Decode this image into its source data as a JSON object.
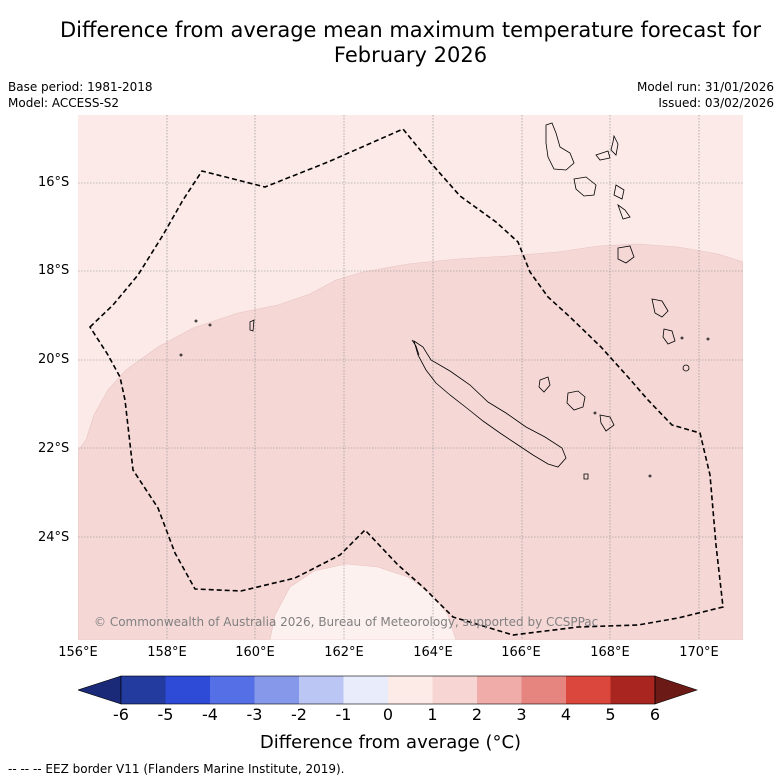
{
  "title_line1": "Difference from average mean maximum temperature forecast for",
  "title_line2": "February 2026",
  "base_period": "Base period: 1981-2018",
  "model": "Model: ACCESS-S2",
  "model_run": "Model run: 31/01/2026",
  "issued": "Issued: 03/02/2026",
  "lat_labels": [
    "16°S",
    "18°S",
    "20°S",
    "22°S",
    "24°S"
  ],
  "lon_labels": [
    "156°E",
    "158°E",
    "160°E",
    "162°E",
    "164°E",
    "166°E",
    "168°E",
    "170°E"
  ],
  "copyright": "© Commonwealth of Australia 2026, Bureau of Meteorology, supported by CCSPPac",
  "colorbar": {
    "ticks": [
      "-6",
      "-5",
      "-4",
      "-3",
      "-2",
      "-1",
      "0",
      "1",
      "2",
      "3",
      "4",
      "5",
      "6"
    ],
    "colors": [
      "#233a9e",
      "#2e4bd8",
      "#5570e6",
      "#8598ea",
      "#bcc6f5",
      "#e8ecfb",
      "#fdebe8",
      "#f6d5d2",
      "#efaca8",
      "#e6857f",
      "#db473c",
      "#a9251f"
    ],
    "under_color": "#1a2a78",
    "over_color": "#6b1a15",
    "label": "Difference from average (°C)"
  },
  "map_colors": {
    "zero_to_one": "#fbeae8",
    "one_to_two": "#f5d8d6"
  },
  "eez_legend": "--  --  -- EEZ border V11 (Flanders Marine Institute, 2019)."
}
